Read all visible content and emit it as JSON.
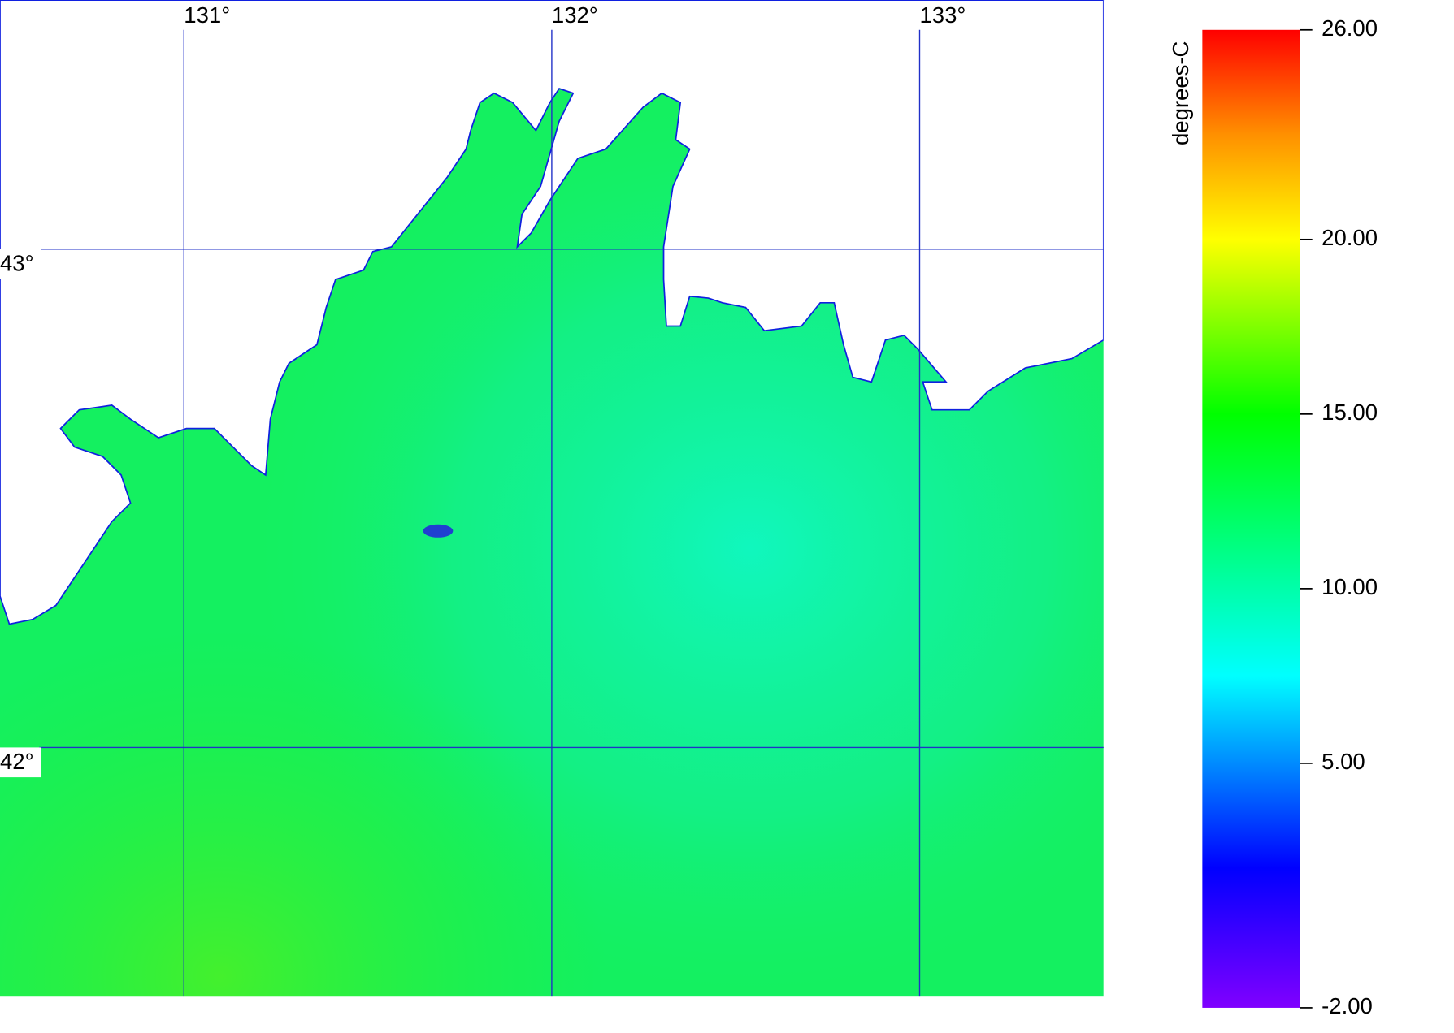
{
  "map": {
    "xlim": [
      130.5,
      133.5
    ],
    "ylim": [
      41.5,
      43.5
    ],
    "xticks": [
      {
        "value": 131,
        "label": "131°"
      },
      {
        "value": 132,
        "label": "132°"
      },
      {
        "value": 133,
        "label": "133°"
      }
    ],
    "yticks": [
      {
        "value": 42,
        "label": "42°"
      },
      {
        "value": 43,
        "label": "43°"
      }
    ],
    "grid_color": "#2030c8"
  },
  "colorbar": {
    "title": "degrees-C",
    "lim": [
      -2,
      26
    ],
    "ticks": [
      {
        "value": -2,
        "label": "-2.00"
      },
      {
        "value": 5,
        "label": "5.00"
      },
      {
        "value": 10,
        "label": "10.00"
      },
      {
        "value": 15,
        "label": "15.00"
      },
      {
        "value": 20,
        "label": "20.00"
      },
      {
        "value": 26,
        "label": "26.00"
      }
    ],
    "stops": [
      {
        "value": -2,
        "color": "#8000ff"
      },
      {
        "value": 2,
        "color": "#0000ff"
      },
      {
        "value": 7.5,
        "color": "#00ffff"
      },
      {
        "value": 15,
        "color": "#00ff00"
      },
      {
        "value": 20,
        "color": "#ffff00"
      },
      {
        "value": 23,
        "color": "#ff9000"
      },
      {
        "value": 26,
        "color": "#ff0000"
      }
    ]
  }
}
